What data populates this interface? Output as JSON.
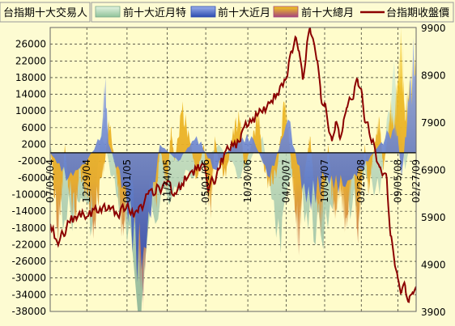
{
  "chart_data": {
    "type": "area",
    "title": "台指期十大交易人",
    "legend": [
      {
        "name": "前十大近月特",
        "color": "#b8e0b4"
      },
      {
        "name": "前十大近月",
        "color": "#3a5fc8"
      },
      {
        "name": "前十大總月",
        "color": "#f0c020"
      },
      {
        "name": "台指期收盤價",
        "color": "#8b0000"
      }
    ],
    "colors": {
      "background": "#fdfbd2",
      "plot_bg": "#fffccb",
      "zero_line": "#000000",
      "grid": "#000000",
      "near_month_special": "#b8e0b4",
      "near_month": "#3a5fc8",
      "total_top": "#f3c81e",
      "total_bottom": "#a5457c",
      "price": "#8b0000"
    },
    "left_axis": {
      "min": -38000,
      "max": 30000,
      "ticks": [
        26000,
        22000,
        18000,
        14000,
        10000,
        6000,
        2000,
        -2000,
        -6000,
        -10000,
        -14000,
        -18000,
        -22000,
        -26000,
        -30000,
        -34000,
        -38000
      ]
    },
    "right_axis": {
      "min": 3900,
      "max": 9900,
      "ticks": [
        9900,
        8900,
        7900,
        6900,
        5900,
        4900,
        3900
      ]
    },
    "x_labels": [
      "07/05/04",
      "12/29/04",
      "06/01/05",
      "11/24/05",
      "05/01/06",
      "10/30/06",
      "04/20/07",
      "10/04/07",
      "03/26/08",
      "09/05/08",
      "02/27/09"
    ],
    "x_range": [
      0,
      100
    ],
    "x_label_positions": [
      0,
      10,
      21,
      32,
      42.5,
      54,
      64.5,
      75,
      85,
      95,
      100
    ],
    "price_series": {
      "name": "台指期收盤價",
      "x": [
        0,
        2,
        3,
        4,
        5,
        7,
        8,
        10,
        12,
        14,
        15,
        16,
        18,
        19,
        20,
        21,
        22,
        24,
        25,
        26,
        27,
        28,
        29,
        30,
        31,
        32,
        33,
        34,
        36,
        38,
        40,
        42,
        43,
        44,
        45,
        46,
        48,
        50,
        52,
        53,
        55,
        57,
        58,
        60,
        62,
        64,
        65,
        66,
        67,
        68,
        69,
        70,
        71,
        72,
        73,
        74,
        75,
        76,
        77,
        78,
        79,
        80,
        81,
        82,
        83,
        84,
        85,
        86,
        87,
        88,
        89,
        90,
        91,
        92,
        93,
        94,
        95,
        96,
        97,
        98,
        99,
        100
      ],
      "y": [
        5750,
        5350,
        5550,
        5500,
        5800,
        5900,
        6000,
        5900,
        6050,
        6000,
        6100,
        6150,
        6000,
        5950,
        6100,
        6150,
        5950,
        6000,
        6100,
        6300,
        6450,
        6400,
        6500,
        6450,
        6600,
        6650,
        6500,
        6400,
        6600,
        6800,
        6900,
        7000,
        6500,
        6700,
        6600,
        6900,
        7300,
        7400,
        7500,
        7800,
        7900,
        8100,
        8100,
        8300,
        8500,
        8800,
        9000,
        9400,
        9700,
        9400,
        8800,
        9400,
        9900,
        9600,
        9200,
        8400,
        8300,
        7800,
        7500,
        7900,
        7600,
        7800,
        8200,
        8400,
        8500,
        8800,
        8600,
        7900,
        7800,
        7500,
        7200,
        6950,
        6800,
        6700,
        5500,
        5000,
        4600,
        4300,
        4450,
        4100,
        4300,
        4350
      ]
    },
    "total_series": {
      "name": "前十大總月",
      "x": [
        0,
        2,
        3,
        4,
        5,
        7,
        8,
        10,
        12,
        14,
        15,
        16,
        18,
        19,
        20,
        21,
        22,
        24,
        25,
        26,
        27,
        28,
        29,
        30,
        31,
        32,
        33,
        34,
        36,
        38,
        40,
        42,
        43,
        44,
        45,
        46,
        48,
        50,
        52,
        53,
        55,
        57,
        58,
        60,
        62,
        64,
        65,
        66,
        67,
        68,
        69,
        70,
        71,
        72,
        73,
        74,
        75,
        76,
        77,
        78,
        79,
        80,
        81,
        82,
        83,
        84,
        85,
        86,
        87,
        88,
        89,
        90,
        91,
        92,
        93,
        94,
        95,
        96,
        97,
        98,
        99,
        100
      ],
      "y": [
        2000,
        -18000,
        -12000,
        2000,
        -8000,
        -14000,
        -4000,
        -10000,
        -16000,
        -6000,
        -2000,
        8000,
        -4000,
        -12000,
        -20000,
        -8000,
        -4000,
        -22000,
        -30000,
        -26000,
        -10000,
        -6000,
        -12000,
        2000,
        -4000,
        -8000,
        6000,
        -2000,
        10000,
        4000,
        -6000,
        2000,
        -10000,
        -12000,
        4000,
        -2000,
        -6000,
        6000,
        8000,
        -4000,
        2000,
        10000,
        -2000,
        -8000,
        -4000,
        12000,
        6000,
        -4000,
        -14000,
        -20000,
        -8000,
        -2000,
        4000,
        -6000,
        -12000,
        -16000,
        -8000,
        2000,
        -10000,
        -14000,
        -8000,
        -12000,
        -18000,
        -8000,
        -4000,
        -20000,
        -8000,
        2000,
        -10000,
        -2000,
        4000,
        8000,
        -4000,
        2000,
        10000,
        6000,
        18000,
        24000,
        8000,
        14000,
        16000,
        22000
      ]
    },
    "near_series": {
      "name": "前十大近月",
      "x": [
        0,
        5,
        10,
        14,
        15,
        16,
        20,
        25,
        30,
        35,
        40,
        45,
        50,
        55,
        60,
        65,
        70,
        75,
        80,
        85,
        90,
        94,
        95,
        96,
        98,
        100
      ],
      "y": [
        0,
        -6000,
        -2000,
        4000,
        16000,
        2000,
        -8000,
        -28000,
        2000,
        -2000,
        4000,
        -4000,
        2000,
        4000,
        -6000,
        8000,
        -12000,
        -6000,
        -8000,
        -4000,
        2000,
        6000,
        4000,
        -6000,
        12000,
        26000
      ]
    },
    "special_series": {
      "name": "前十大近月特",
      "x": [
        0,
        4,
        8,
        11,
        14,
        18,
        22,
        25,
        28,
        34,
        40,
        46,
        52,
        58,
        63,
        66,
        70,
        74,
        79,
        82,
        86,
        90,
        94,
        97,
        100
      ],
      "y": [
        2000,
        -16000,
        -12000,
        -20000,
        6000,
        -10000,
        -18000,
        -36000,
        -14000,
        -8000,
        -4000,
        2000,
        -6000,
        4000,
        -24000,
        -6000,
        -14000,
        -20000,
        -8000,
        -16000,
        -4000,
        -10000,
        22000,
        -4000,
        10000
      ]
    }
  }
}
